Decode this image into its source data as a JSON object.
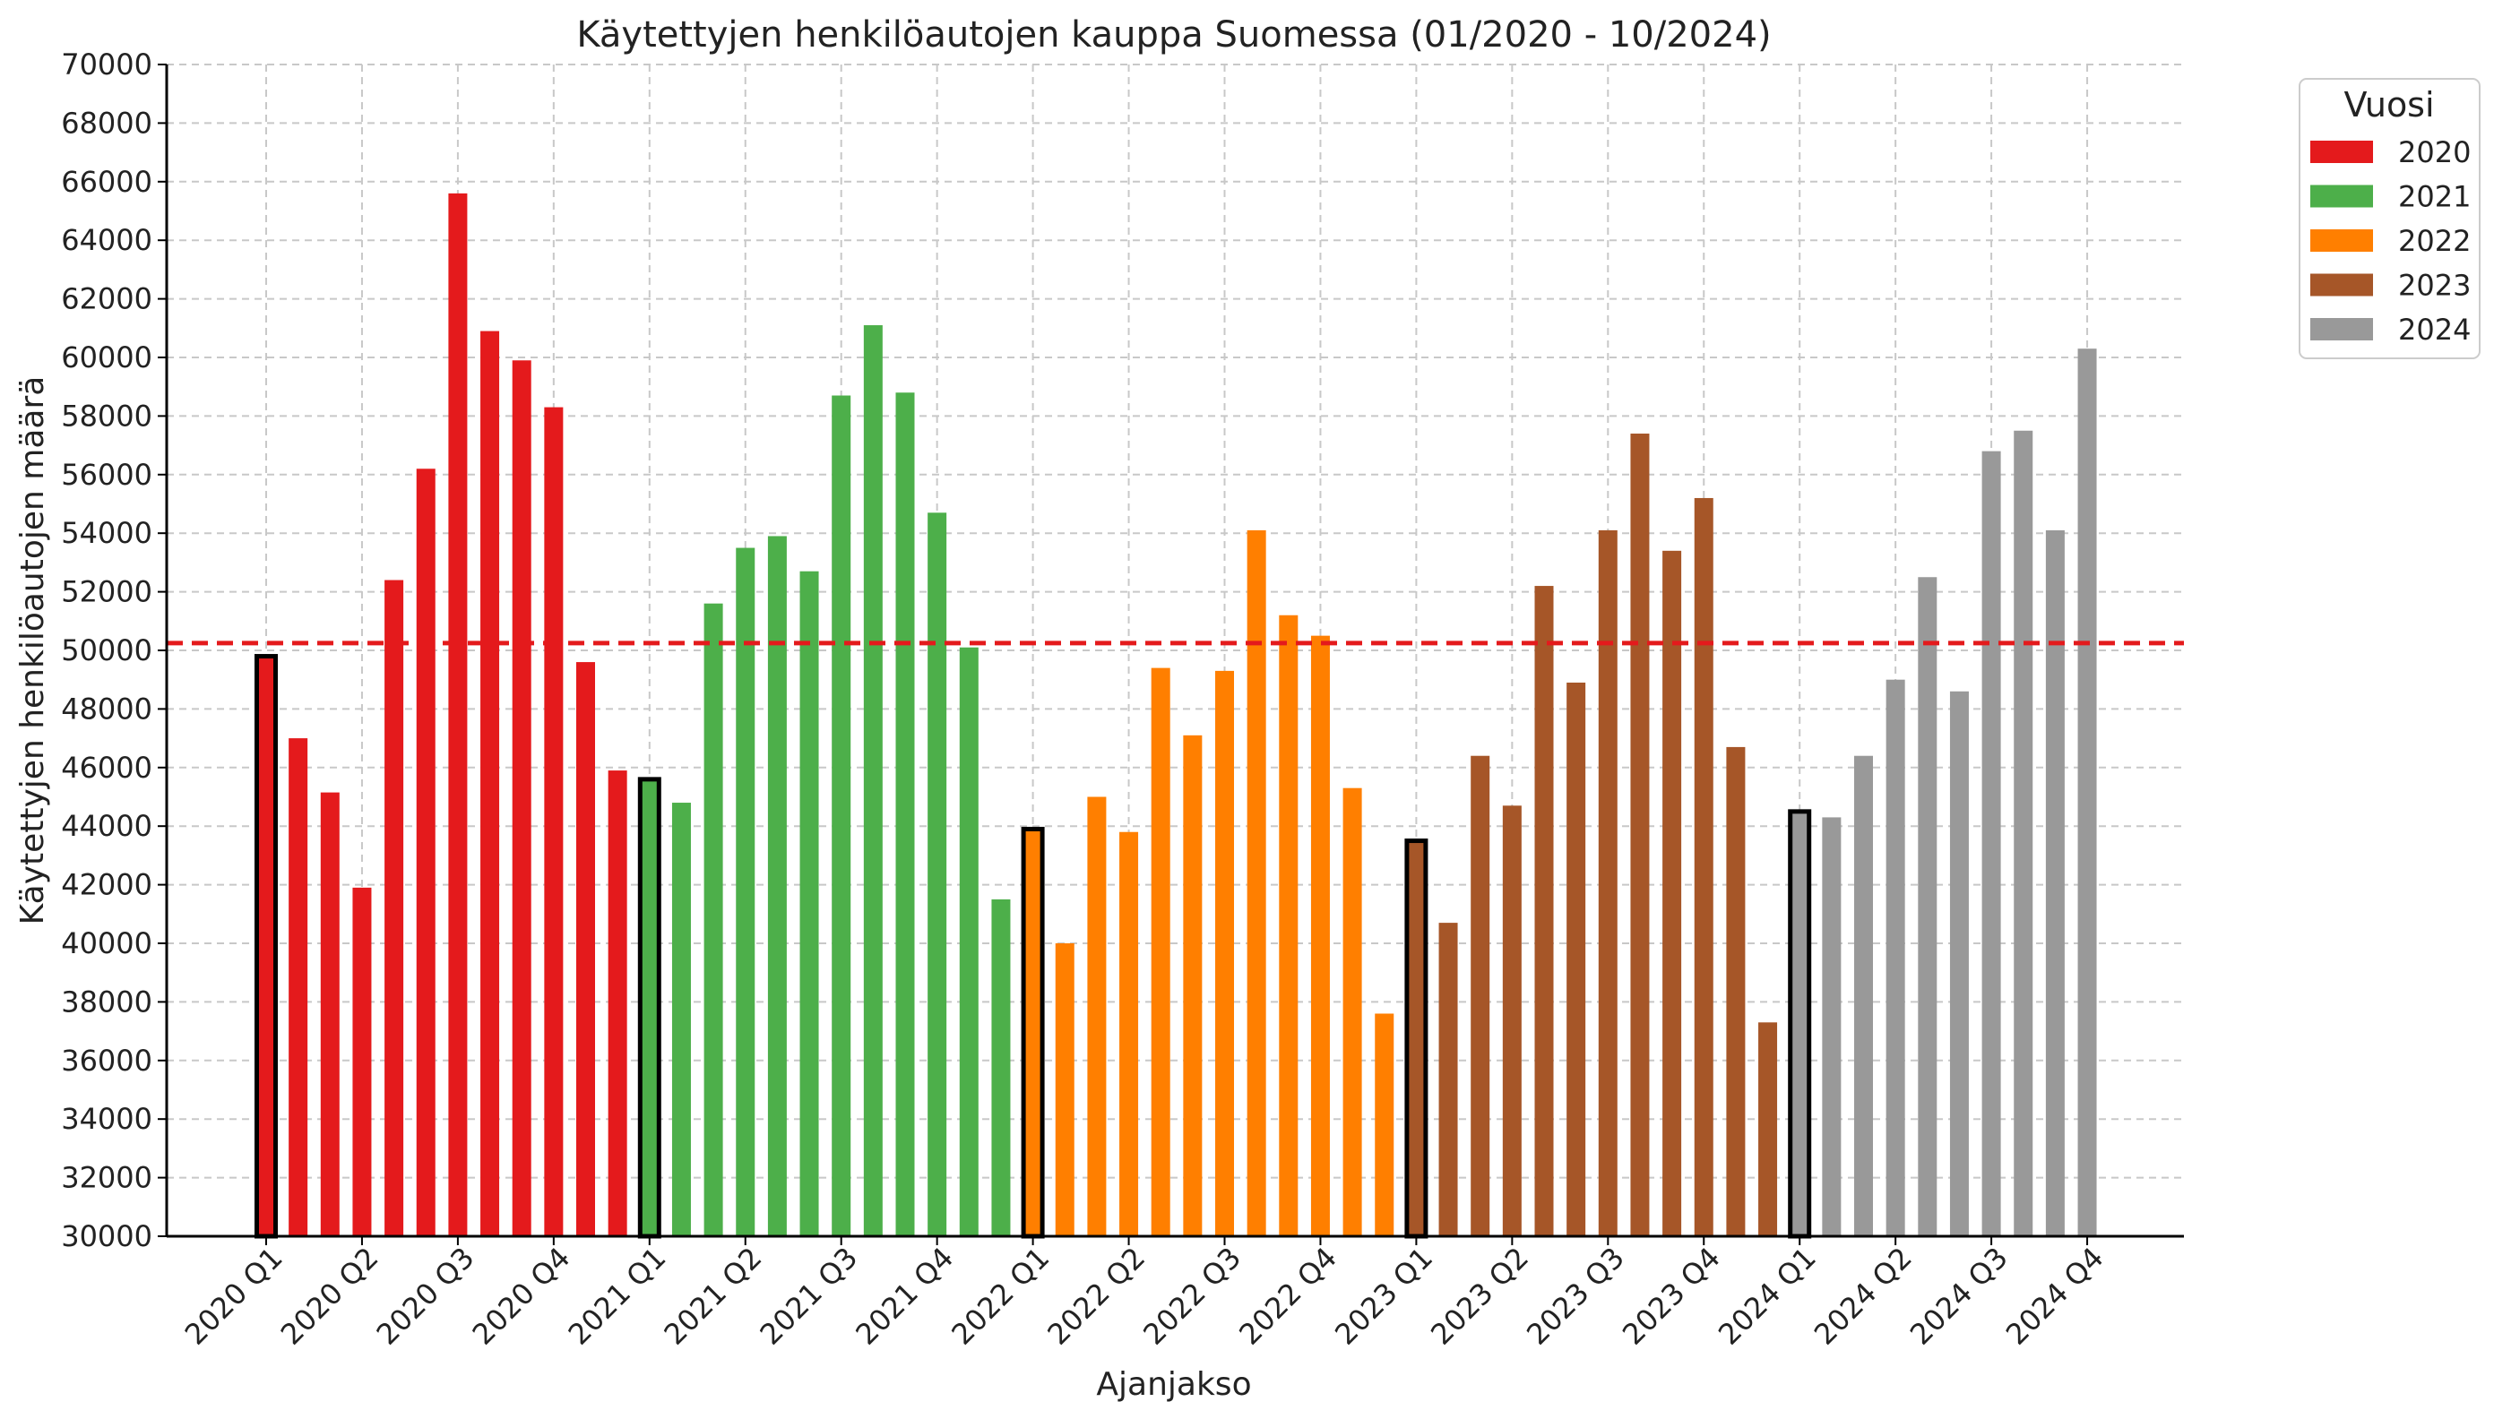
{
  "chart_data": {
    "type": "bar",
    "title": "Käytettyjen henkilöautojen kauppa Suomessa (01/2020 - 10/2024)",
    "xlabel": "Ajanjakso",
    "ylabel": "Käytettyjen henkilöautojen määrä",
    "ylim": [
      30000,
      70000
    ],
    "ytick_step": 2000,
    "grid": true,
    "legend": {
      "title": "Vuosi",
      "placement": "outside-top-right"
    },
    "reference_line": {
      "value": 50250,
      "style": "dashed",
      "color": "#e41a1c"
    },
    "x_tick_labels": [
      "2020 Q1",
      "2020 Q2",
      "2020 Q3",
      "2020 Q4",
      "2021 Q1",
      "2021 Q2",
      "2021 Q3",
      "2021 Q4",
      "2022 Q1",
      "2022 Q2",
      "2022 Q3",
      "2022 Q4",
      "2023 Q1",
      "2023 Q2",
      "2023 Q3",
      "2023 Q4",
      "2024 Q1",
      "2024 Q2",
      "2024 Q3",
      "2024 Q4"
    ],
    "series": [
      {
        "name": "2020",
        "color": "#e41a1c",
        "values": [
          49800,
          47000,
          45150,
          41900,
          52400,
          56200,
          65600,
          60900,
          59900,
          58300,
          49600,
          45900
        ]
      },
      {
        "name": "2021",
        "color": "#4daf4a",
        "values": [
          45600,
          44800,
          51600,
          53500,
          53900,
          52700,
          58700,
          61100,
          58800,
          54700,
          50100,
          41500
        ]
      },
      {
        "name": "2022",
        "color": "#ff7f00",
        "values": [
          43900,
          40000,
          45000,
          43800,
          49400,
          47100,
          49300,
          54100,
          51200,
          50500,
          45300,
          37600
        ]
      },
      {
        "name": "2023",
        "color": "#a65628",
        "values": [
          43500,
          40700,
          46400,
          44700,
          52200,
          48900,
          54100,
          57400,
          53400,
          55200,
          46700,
          37300
        ]
      },
      {
        "name": "2024",
        "color": "#999999",
        "values": [
          44500,
          44300,
          46400,
          49000,
          52500,
          48600,
          56800,
          57500,
          54100,
          60300
        ]
      }
    ],
    "highlight_first_month_of_year": true
  }
}
